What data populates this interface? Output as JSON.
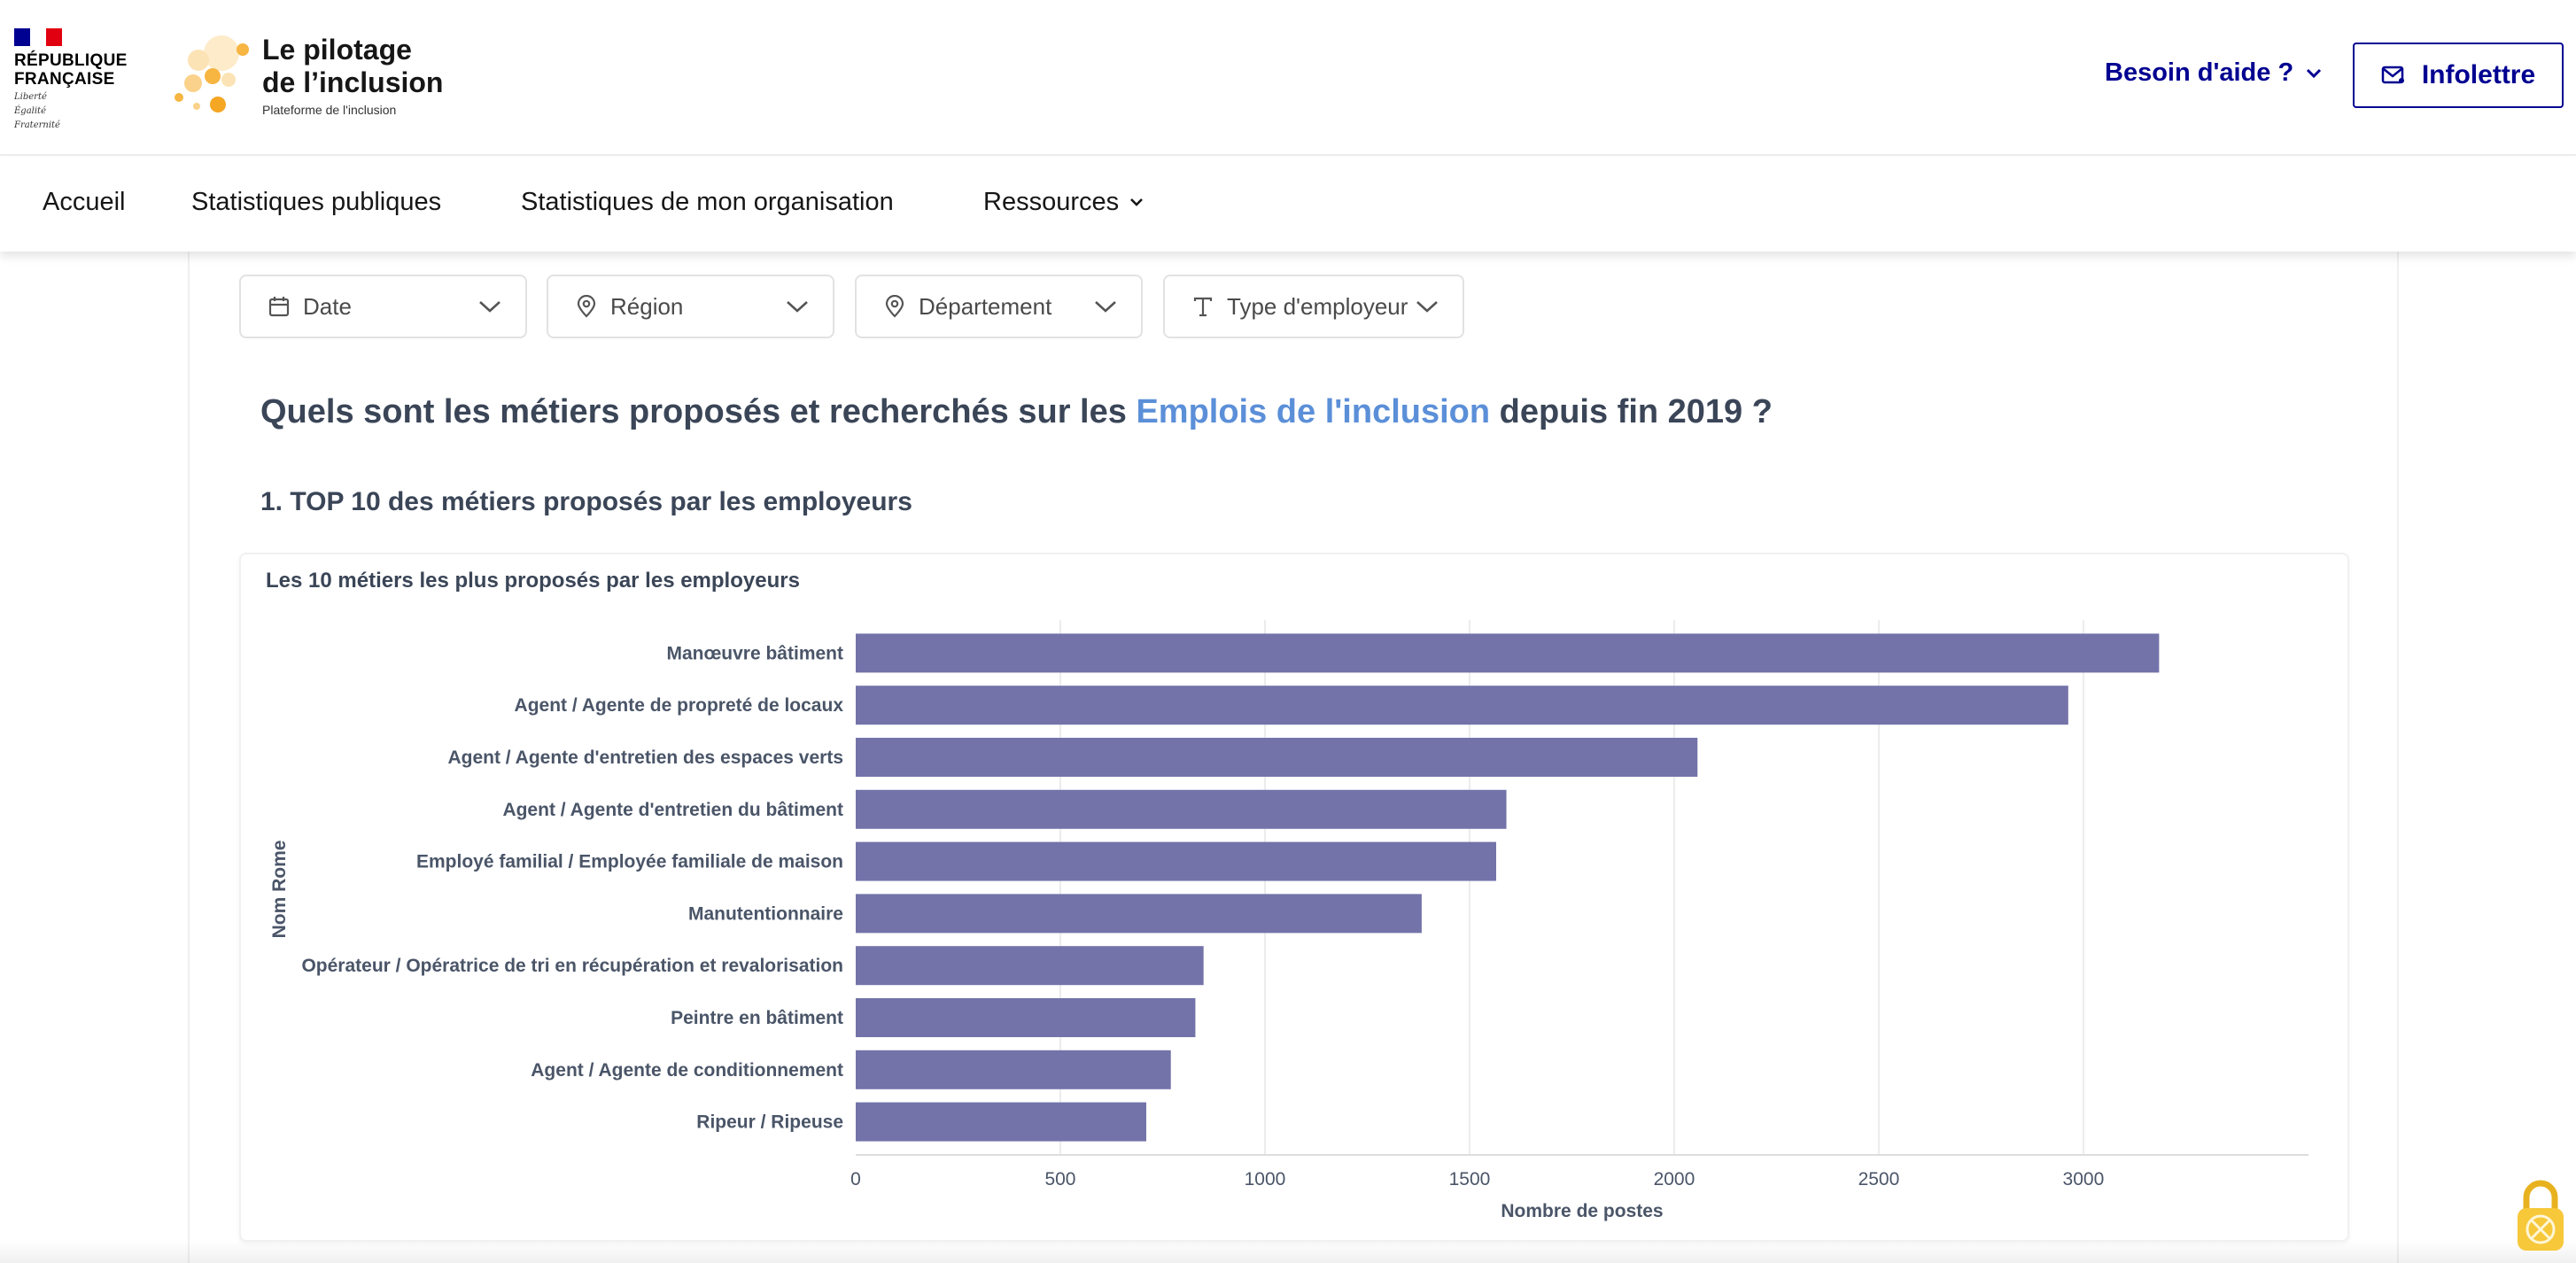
{
  "header": {
    "republique_lines": [
      "RÉPUBLIQUE",
      "FRANÇAISE"
    ],
    "motto_lines": [
      "Liberté",
      "Égalité",
      "Fraternité"
    ],
    "brand_title_lines": [
      "Le pilotage",
      "de l’inclusion"
    ],
    "brand_subtitle": "Plateforme de l'inclusion",
    "help_label": "Besoin d'aide ?",
    "newsletter_label": "Infolettre"
  },
  "nav": {
    "items": [
      {
        "label": "Accueil"
      },
      {
        "label": "Statistiques publiques"
      },
      {
        "label": "Statistiques de mon organisation"
      },
      {
        "label": "Ressources"
      }
    ]
  },
  "filters": [
    {
      "label": "Date",
      "icon": "calendar-icon"
    },
    {
      "label": "Région",
      "icon": "location-pin-icon"
    },
    {
      "label": "Département",
      "icon": "location-pin-icon"
    },
    {
      "label": "Type d'employeur",
      "icon": "text-type-icon"
    }
  ],
  "main": {
    "question_before": "Quels sont les métiers proposés et recherchés sur les ",
    "question_link": "Emplois de l'inclusion",
    "question_after": " depuis fin 2019 ?",
    "section_title": "1. TOP 10 des métiers proposés par les employeurs"
  },
  "colors": {
    "bar": "#7373a9",
    "brand_blue": "#000091",
    "link_blue": "#5b8fd8",
    "heading": "#3a4557"
  },
  "chart_data": {
    "type": "bar",
    "orientation": "horizontal",
    "title": "Les 10 métiers les plus proposés par les employeurs",
    "xlabel": "Nombre de postes",
    "ylabel": "Nom Rome",
    "categories": [
      "Manœuvre bâtiment",
      "Agent / Agente de propreté de locaux",
      "Agent / Agente d'entretien des espaces verts",
      "Agent / Agente d'entretien du bâtiment",
      "Employé familial / Employée familiale de maison",
      "Manutentionnaire",
      "Opérateur / Opératrice de tri en récupération et revalorisation",
      "Peintre en bâtiment",
      "Agent / Agente de conditionnement",
      "Ripeur / Ripeuse"
    ],
    "values": [
      3185,
      2963,
      2057,
      1590,
      1565,
      1383,
      850,
      830,
      770,
      710
    ],
    "xlim": [
      0,
      3550
    ],
    "xticks": [
      0,
      500,
      1000,
      1500,
      2000,
      2500,
      3000
    ],
    "grid": true
  }
}
